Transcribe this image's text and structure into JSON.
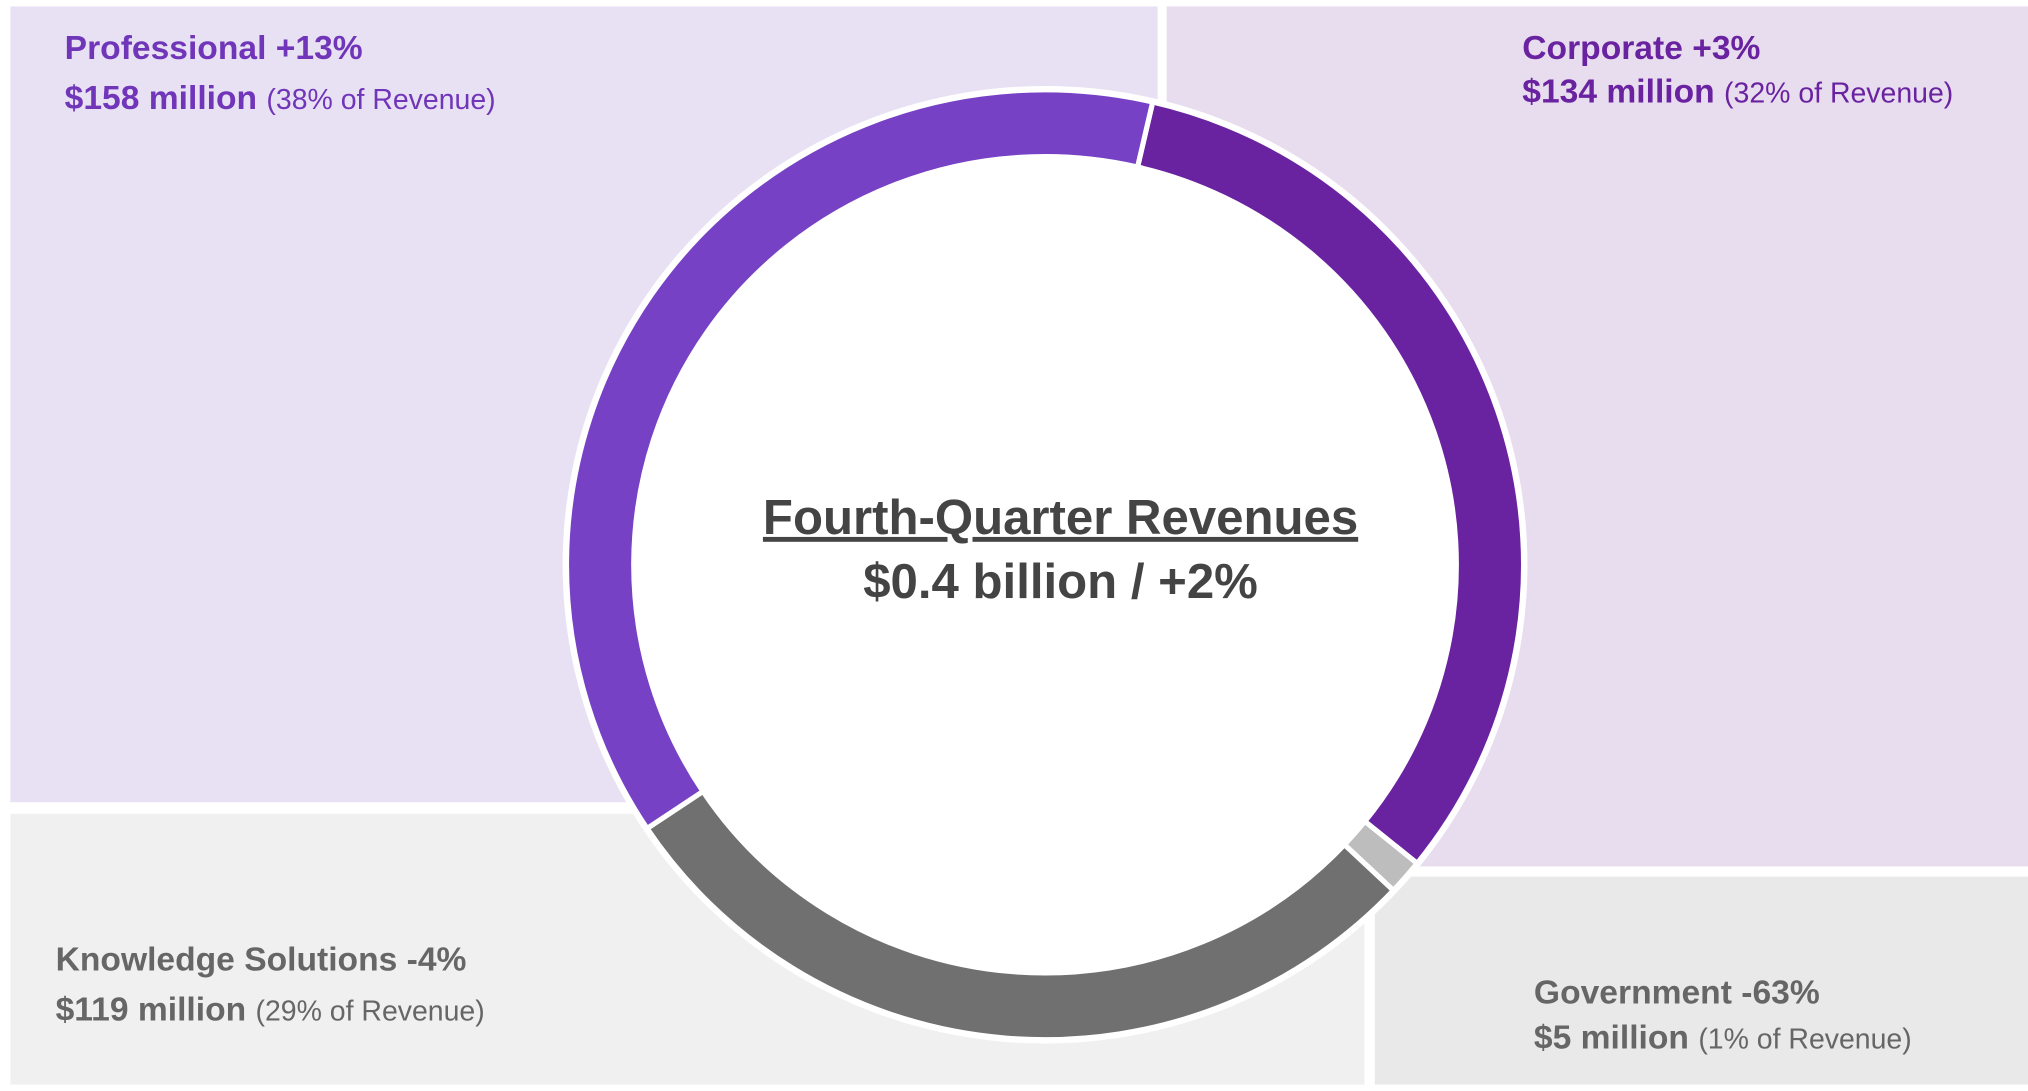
{
  "chart_data": {
    "type": "donut",
    "title": "Fourth-Quarter Revenues",
    "subtitle": "$0.4 billion / +2%",
    "categories": [
      "Corporate +3%",
      "Government -63%",
      "Knowledge Solutions -4%",
      "Professional +13%"
    ],
    "values": [
      134,
      5,
      119,
      158
    ],
    "value_labels": [
      "$134 million",
      "$5 million",
      "$119 million",
      "$158 million"
    ],
    "share_labels": [
      "(32% of Revenue)",
      "(1% of Revenue)",
      "(29% of Revenue)",
      "(38% of Revenue)"
    ],
    "colors": [
      "#6a23a0",
      "#bdbdbd",
      "#707070",
      "#7641c4"
    ]
  }
}
